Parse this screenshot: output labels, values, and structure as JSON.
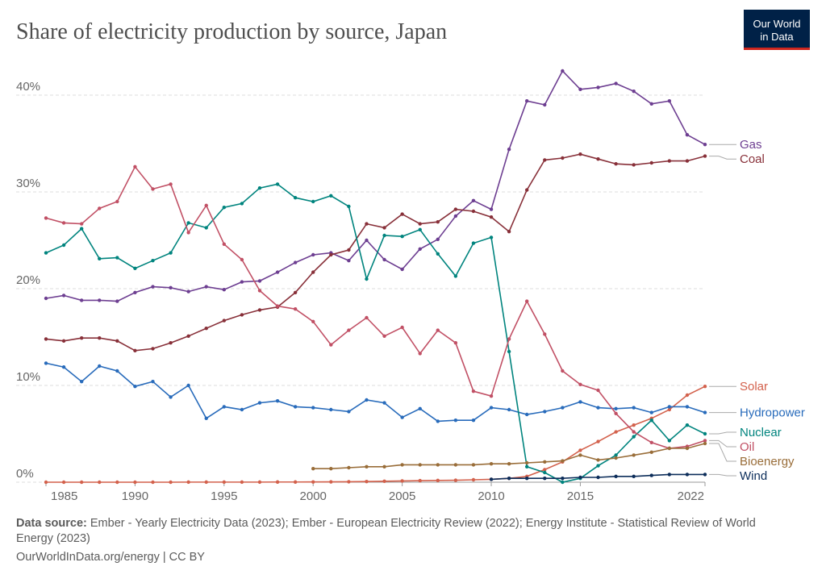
{
  "chart_data": {
    "type": "line",
    "title": "Share of electricity production by source, Japan",
    "logo": [
      "Our World",
      "in Data"
    ],
    "source_label": "Data source:",
    "source": "Ember - Yearly Electricity Data (2023); Ember - European Electricity Review (2022); Energy Institute - Statistical Review of World Energy (2023)",
    "footer": "OurWorldInData.org/energy | CC BY",
    "x": [
      1985,
      1986,
      1987,
      1988,
      1989,
      1990,
      1991,
      1992,
      1993,
      1994,
      1995,
      1996,
      1997,
      1998,
      1999,
      2000,
      2001,
      2002,
      2003,
      2004,
      2005,
      2006,
      2007,
      2008,
      2009,
      2010,
      2011,
      2012,
      2013,
      2014,
      2015,
      2016,
      2017,
      2018,
      2019,
      2020,
      2021,
      2022
    ],
    "xlim": [
      1985,
      2022
    ],
    "xticks": [
      1985,
      1990,
      1995,
      2000,
      2005,
      2010,
      2015,
      2022
    ],
    "ylim": [
      0,
      42.5
    ],
    "yticks": [
      {
        "value": 0,
        "label": "0%"
      },
      {
        "value": 10,
        "label": "10%"
      },
      {
        "value": 20,
        "label": "20%"
      },
      {
        "value": 30,
        "label": "30%"
      },
      {
        "value": 40,
        "label": "40%"
      }
    ],
    "grid": true,
    "series": [
      {
        "name": "Gas",
        "color": "#6d3e91",
        "values": [
          19.0,
          19.3,
          18.8,
          18.8,
          18.7,
          19.6,
          20.2,
          20.1,
          19.7,
          20.2,
          19.9,
          20.7,
          20.8,
          21.7,
          22.7,
          23.5,
          23.7,
          22.9,
          25.0,
          23.0,
          22.0,
          24.1,
          25.1,
          27.5,
          29.1,
          28.2,
          34.4,
          39.4,
          39.0,
          42.5,
          40.6,
          40.8,
          41.2,
          40.4,
          39.1,
          39.4,
          35.9,
          34.9
        ]
      },
      {
        "name": "Coal",
        "color": "#883039",
        "values": [
          14.8,
          14.6,
          14.9,
          14.9,
          14.6,
          13.6,
          13.8,
          14.4,
          15.1,
          15.9,
          16.7,
          17.3,
          17.8,
          18.1,
          19.6,
          21.7,
          23.5,
          24.0,
          26.7,
          26.3,
          27.7,
          26.7,
          26.9,
          28.2,
          28.0,
          27.4,
          25.9,
          30.2,
          33.3,
          33.5,
          33.9,
          33.4,
          32.9,
          32.8,
          33.0,
          33.2,
          33.2,
          33.7
        ]
      },
      {
        "name": "Solar",
        "color": "#d3614c",
        "values": [
          0,
          0,
          0,
          0,
          0,
          0,
          0,
          0,
          0.01,
          0.01,
          0.01,
          0.01,
          0.01,
          0.02,
          0.02,
          0.03,
          0.04,
          0.05,
          0.07,
          0.1,
          0.13,
          0.16,
          0.18,
          0.2,
          0.25,
          0.3,
          0.4,
          0.6,
          1.3,
          2.1,
          3.3,
          4.2,
          5.2,
          5.9,
          6.6,
          7.5,
          9.0,
          9.9
        ]
      },
      {
        "name": "Hydropower",
        "color": "#286bbb",
        "values": [
          12.3,
          11.9,
          10.4,
          12.0,
          11.5,
          9.9,
          10.4,
          8.8,
          10.0,
          6.6,
          7.8,
          7.5,
          8.2,
          8.4,
          7.8,
          7.7,
          7.5,
          7.3,
          8.5,
          8.2,
          6.7,
          7.6,
          6.3,
          6.4,
          6.4,
          7.7,
          7.5,
          7.0,
          7.3,
          7.7,
          8.3,
          7.7,
          7.6,
          7.7,
          7.2,
          7.8,
          7.8,
          7.2
        ]
      },
      {
        "name": "Nuclear",
        "color": "#00847e",
        "values": [
          23.7,
          24.5,
          26.2,
          23.1,
          23.2,
          22.1,
          22.9,
          23.7,
          26.8,
          26.3,
          28.4,
          28.8,
          30.4,
          30.8,
          29.4,
          29.0,
          29.6,
          28.5,
          21.0,
          25.5,
          25.4,
          26.1,
          23.6,
          21.3,
          24.7,
          25.3,
          13.5,
          1.6,
          1.0,
          0.0,
          0.4,
          1.7,
          2.8,
          4.7,
          6.4,
          4.3,
          5.9,
          5.0
        ]
      },
      {
        "name": "Oil",
        "color": "#c15065",
        "values": [
          27.3,
          26.8,
          26.7,
          28.3,
          29.0,
          32.6,
          30.3,
          30.8,
          25.8,
          28.6,
          24.6,
          23.0,
          19.8,
          18.2,
          17.9,
          16.6,
          14.2,
          15.7,
          17.0,
          15.1,
          16.0,
          13.3,
          15.7,
          14.4,
          9.4,
          8.9,
          14.8,
          18.7,
          15.3,
          11.5,
          10.1,
          9.5,
          7.1,
          5.2,
          4.1,
          3.5,
          3.7,
          4.3
        ]
      },
      {
        "name": "Bioenergy",
        "color": "#996d39",
        "values": [
          null,
          null,
          null,
          null,
          null,
          null,
          null,
          null,
          null,
          null,
          null,
          null,
          null,
          null,
          null,
          1.4,
          1.4,
          1.5,
          1.6,
          1.6,
          1.8,
          1.8,
          1.8,
          1.8,
          1.8,
          1.9,
          1.9,
          2.0,
          2.1,
          2.2,
          2.8,
          2.3,
          2.5,
          2.8,
          3.1,
          3.5,
          3.5,
          4.0
        ]
      },
      {
        "name": "Wind",
        "color": "#0c2d5a",
        "values": [
          null,
          null,
          null,
          null,
          null,
          null,
          null,
          null,
          null,
          null,
          null,
          null,
          null,
          null,
          null,
          null,
          null,
          null,
          null,
          null,
          null,
          null,
          null,
          null,
          null,
          0.3,
          0.4,
          0.4,
          0.4,
          0.4,
          0.5,
          0.5,
          0.6,
          0.6,
          0.7,
          0.8,
          0.8,
          0.8
        ]
      }
    ]
  }
}
